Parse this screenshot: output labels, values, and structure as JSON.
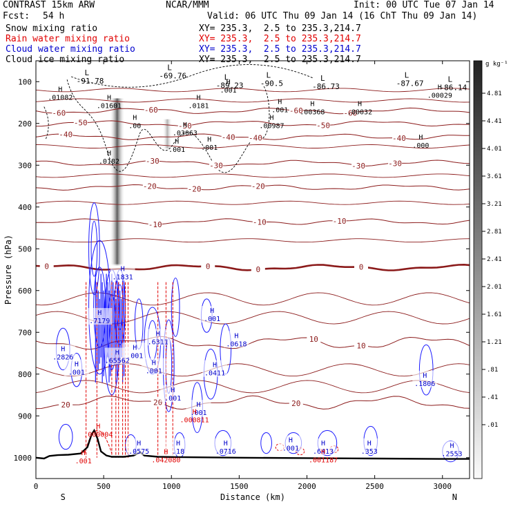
{
  "header": {
    "model": "CONTRAST 15km ARW",
    "org": "NCAR/MMM",
    "init": "Init: 00 UTC Tue 07 Jan 14",
    "fcst_label": "Fcst:",
    "fcst_value": "54 h",
    "valid": "Valid: 06 UTC Thu 09 Jan 14 (16 ChT Thu 09 Jan 14)"
  },
  "fields": [
    {
      "name": "Snow mixing ratio",
      "xy": "XY= 235.3,  2.5 to 235.3,214.7",
      "color": "#000000"
    },
    {
      "name": "Rain water mixing ratio",
      "xy": "XY= 235.3,  2.5 to 235.3,214.7",
      "color": "#e00000"
    },
    {
      "name": "Cloud water mixing ratio",
      "xy": "XY= 235.3,  2.5 to 235.3,214.7",
      "color": "#0000cc"
    },
    {
      "name": "Cloud ice mixing ratio",
      "xy": "XY= 235.3,  2.5 to 235.3,214.7",
      "color": "#000000"
    }
  ],
  "colorbar": {
    "unit": "g kg⁻¹",
    "labels": [
      "4.81",
      "4.41",
      "4.01",
      "3.61",
      "3.21",
      "2.81",
      "2.41",
      "2.01",
      "1.61",
      "1.21",
      ".81",
      ".41",
      ".01"
    ]
  },
  "chart_data": {
    "type": "contour",
    "xlabel": "Distance (km)",
    "ylabel": "Pressure (hPa)",
    "xlim": [
      0,
      3200
    ],
    "ylim": [
      1050,
      50
    ],
    "xticks": [
      0,
      500,
      1000,
      1500,
      2000,
      2500,
      3000
    ],
    "yticks": [
      100,
      200,
      300,
      400,
      500,
      600,
      700,
      800,
      900,
      1000
    ],
    "x_end_labels": {
      "left": "S",
      "right": "N"
    },
    "temperature_contours": [
      {
        "label": "-60",
        "p": 170,
        "labels_x": [
          170,
          850,
          1920,
          2320
        ]
      },
      {
        "label": "-50",
        "p": 200,
        "labels_x": [
          330,
          1100,
          2120
        ]
      },
      {
        "label": "-40",
        "p": 232,
        "labels_x": [
          220,
          1420,
          1620,
          2680
        ]
      },
      {
        "label": "-30",
        "p": 295,
        "labels_x": [
          860,
          1330,
          2380,
          2650
        ]
      },
      {
        "label": "-20",
        "p": 353,
        "labels_x": [
          840,
          1170,
          1640
        ]
      },
      {
        "label": "-10",
        "p": 435,
        "labels_x": [
          880,
          1650,
          2240
        ]
      },
      {
        "label": "0",
        "p": 545,
        "labels_x": [
          80,
          1270,
          1640,
          2400
        ]
      },
      {
        "label": "10",
        "p": 725,
        "labels_x": [
          2050,
          2400
        ]
      },
      {
        "label": "20",
        "p": 868,
        "labels_x": [
          220,
          900,
          1920
        ]
      }
    ],
    "ice_contour_labels": [
      {
        "label": "-91.78",
        "x": 400,
        "p": 95
      },
      {
        "label": "-69.76",
        "x": 1010,
        "p": 82
      },
      {
        "label": "-89.23",
        "x": 1430,
        "p": 105
      },
      {
        "label": "-90.5",
        "x": 1740,
        "p": 100
      },
      {
        "label": "-86.73",
        "x": 2140,
        "p": 108
      },
      {
        "label": "-87.67",
        "x": 2760,
        "p": 100
      },
      {
        "label": "-86.14",
        "x": 3080,
        "p": 110
      }
    ],
    "snow_maxima": [
      {
        "label": ".01082",
        "x": 180,
        "p": 130
      },
      {
        "label": ".01601",
        "x": 540,
        "p": 150
      },
      {
        "label": ".0181",
        "x": 1200,
        "p": 150
      },
      {
        "label": ".001",
        "x": 1420,
        "p": 113
      },
      {
        "label": ".001",
        "x": 1800,
        "p": 160
      },
      {
        "label": ".00368",
        "x": 2040,
        "p": 165
      },
      {
        "label": ".00032",
        "x": 2390,
        "p": 165
      },
      {
        "label": ".00029",
        "x": 2980,
        "p": 125
      },
      {
        "label": ".00987",
        "x": 1740,
        "p": 198
      },
      {
        "label": ".03063",
        "x": 1100,
        "p": 215
      },
      {
        "label": ".00",
        "x": 730,
        "p": 198
      },
      {
        "label": ".000",
        "x": 2840,
        "p": 245
      },
      {
        "label": ".001",
        "x": 1040,
        "p": 255
      },
      {
        "label": ".001",
        "x": 1280,
        "p": 250
      },
      {
        "label": ".0182",
        "x": 540,
        "p": 283
      }
    ],
    "cloud_water_maxima": [
      {
        "label": ".1831",
        "x": 640,
        "p": 560
      },
      {
        "label": ".7179",
        "x": 470,
        "p": 665
      },
      {
        "label": ".001",
        "x": 1300,
        "p": 660
      },
      {
        "label": ".6311",
        "x": 900,
        "p": 715
      },
      {
        "label": ".0618",
        "x": 1480,
        "p": 720
      },
      {
        "label": ".2826",
        "x": 200,
        "p": 752
      },
      {
        "label": ".001",
        "x": 730,
        "p": 748
      },
      {
        "label": ".65562",
        "x": 600,
        "p": 760
      },
      {
        "label": ".001",
        "x": 300,
        "p": 788
      },
      {
        "label": ".001",
        "x": 870,
        "p": 785
      },
      {
        "label": ".0411",
        "x": 1320,
        "p": 790
      },
      {
        "label": ".1806",
        "x": 2870,
        "p": 815
      },
      {
        "label": ".001",
        "x": 1010,
        "p": 850
      },
      {
        "label": ".001",
        "x": 1200,
        "p": 885
      },
      {
        "label": ".0575",
        "x": 760,
        "p": 977
      },
      {
        "label": ".18",
        "x": 1050,
        "p": 977
      },
      {
        "label": ".0716",
        "x": 1400,
        "p": 977
      },
      {
        "label": ".001",
        "x": 1880,
        "p": 970
      },
      {
        "label": ".6413",
        "x": 2120,
        "p": 977
      },
      {
        "label": ".353",
        "x": 2460,
        "p": 977
      },
      {
        "label": ".2553",
        "x": 3070,
        "p": 983
      }
    ],
    "rain_maxima": [
      {
        "label": ".000004",
        "x": 460,
        "p": 937
      },
      {
        "label": ".000811",
        "x": 1170,
        "p": 902
      },
      {
        "label": ".001",
        "x": 350,
        "p": 1000
      },
      {
        "label": ".042080",
        "x": 960,
        "p": 998
      },
      {
        "label": ".001187",
        "x": 2120,
        "p": 998
      }
    ],
    "ice_shading": [
      {
        "x": 600,
        "p_top": 140,
        "p_bottom": 540,
        "max": 2.8
      },
      {
        "x": 970,
        "p_top": 190,
        "p_bottom": 260,
        "max": 0.9
      }
    ],
    "terrain": [
      [
        0,
        1000
      ],
      [
        60,
        1002
      ],
      [
        100,
        996
      ],
      [
        160,
        994
      ],
      [
        240,
        993
      ],
      [
        330,
        990
      ],
      [
        380,
        975
      ],
      [
        410,
        945
      ],
      [
        430,
        935
      ],
      [
        455,
        955
      ],
      [
        480,
        985
      ],
      [
        520,
        995
      ],
      [
        560,
        998
      ],
      [
        650,
        998
      ],
      [
        720,
        995
      ],
      [
        770,
        987
      ],
      [
        800,
        995
      ],
      [
        900,
        998
      ],
      [
        1100,
        999
      ],
      [
        1500,
        1000
      ],
      [
        2000,
        1001
      ],
      [
        2500,
        1002
      ],
      [
        3000,
        1003
      ],
      [
        3200,
        1003
      ]
    ]
  }
}
